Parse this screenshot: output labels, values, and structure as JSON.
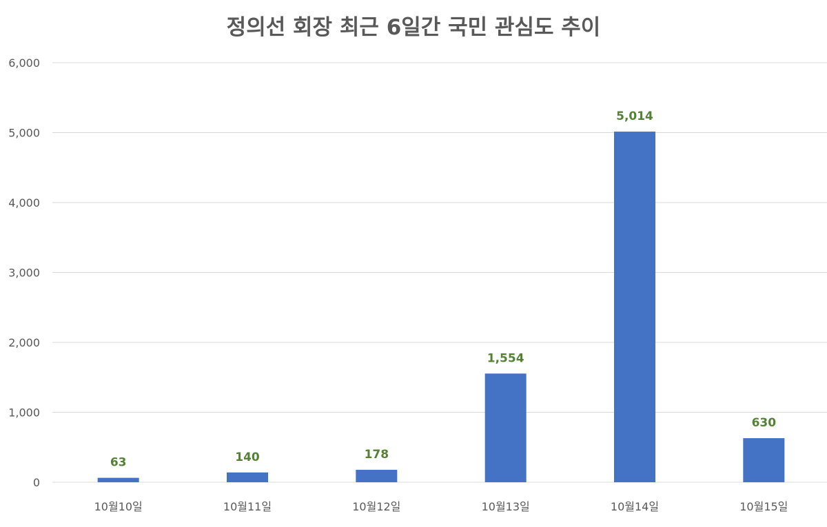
{
  "chart_data": {
    "type": "bar",
    "title": "정의선 회장 최근 6일간 국민 관심도 추이",
    "xlabel": "",
    "ylabel": "",
    "categories": [
      "10월10일",
      "10월11일",
      "10월12일",
      "10월13일",
      "10월14일",
      "10월15일"
    ],
    "values": [
      63,
      140,
      178,
      1554,
      5014,
      630
    ],
    "value_labels": [
      "63",
      "140",
      "178",
      "1,554",
      "5,014",
      "630"
    ],
    "ylim": [
      0,
      6000
    ],
    "yticks": [
      0,
      1000,
      2000,
      3000,
      4000,
      5000,
      6000
    ],
    "ytick_labels": [
      "0",
      "1,000",
      "2,000",
      "3,000",
      "4,000",
      "5,000",
      "6,000"
    ],
    "grid": true,
    "legend": "none",
    "colors": {
      "bar": "#4472C4",
      "data_label": "#548235",
      "gridline": "#D9D9D9",
      "axis_text": "#595959",
      "title": "#595959"
    }
  }
}
